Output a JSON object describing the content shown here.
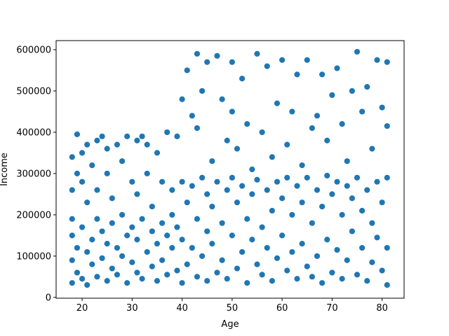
{
  "chart_data": {
    "type": "scatter",
    "xlabel": "Age",
    "ylabel": "Income",
    "color": "#1f77b4",
    "xlim": [
      14.8,
      84.4
    ],
    "ylim": [
      -2000,
      622000
    ],
    "xticks": [
      20,
      30,
      40,
      50,
      60,
      70,
      80
    ],
    "yticks": [
      0,
      100000,
      200000,
      300000,
      400000,
      500000,
      600000
    ],
    "x": [
      18,
      18,
      18,
      18,
      18,
      18,
      19,
      19,
      19,
      19,
      20,
      20,
      20,
      20,
      21,
      21,
      21,
      21,
      22,
      22,
      22,
      23,
      23,
      23,
      23,
      24,
      24,
      24,
      25,
      25,
      25,
      25,
      26,
      26,
      26,
      27,
      27,
      27,
      28,
      28,
      28,
      29,
      29,
      29,
      30,
      30,
      30,
      31,
      31,
      31,
      31,
      32,
      32,
      32,
      33,
      33,
      33,
      34,
      34,
      34,
      35,
      35,
      35,
      36,
      36,
      36,
      37,
      37,
      37,
      38,
      38,
      38,
      39,
      39,
      39,
      40,
      40,
      40,
      40,
      41,
      41,
      41,
      42,
      42,
      42,
      43,
      43,
      43,
      43,
      44,
      44,
      44,
      45,
      45,
      45,
      45,
      46,
      46,
      46,
      47,
      47,
      47,
      48,
      48,
      48,
      49,
      49,
      49,
      50,
      50,
      50,
      50,
      51,
      51,
      51,
      52,
      52,
      52,
      53,
      53,
      53,
      54,
      54,
      54,
      55,
      55,
      55,
      56,
      56,
      56,
      57,
      57,
      57,
      58,
      58,
      58,
      59,
      59,
      59,
      60,
      60,
      60,
      61,
      61,
      61,
      62,
      62,
      62,
      63,
      63,
      63,
      64,
      64,
      64,
      65,
      65,
      65,
      66,
      66,
      66,
      67,
      67,
      67,
      68,
      68,
      68,
      69,
      69,
      69,
      70,
      70,
      70,
      71,
      71,
      71,
      72,
      72,
      72,
      73,
      73,
      73,
      74,
      74,
      74,
      75,
      75,
      75,
      76,
      76,
      76,
      77,
      77,
      77,
      78,
      78,
      78,
      79,
      79,
      79,
      80,
      80,
      80,
      81,
      81,
      81,
      81,
      81
    ],
    "y": [
      35000,
      90000,
      150000,
      190000,
      260000,
      340000,
      60000,
      120000,
      395000,
      300000,
      45000,
      170000,
      280000,
      350000,
      30000,
      110000,
      230000,
      370000,
      80000,
      140000,
      320000,
      50000,
      190000,
      260000,
      380000,
      95000,
      160000,
      390000,
      40000,
      130000,
      300000,
      360000,
      70000,
      180000,
      240000,
      55000,
      120000,
      370000,
      100000,
      200000,
      330000,
      35000,
      150000,
      390000,
      85000,
      170000,
      280000,
      60000,
      140000,
      250000,
      380000,
      45000,
      190000,
      390000,
      110000,
      300000,
      370000,
      75000,
      160000,
      220000,
      40000,
      130000,
      350000,
      90000,
      180000,
      280000,
      55000,
      150000,
      400000,
      120000,
      200000,
      260000,
      65000,
      170000,
      390000,
      35000,
      140000,
      280000,
      480000,
      80000,
      230000,
      550000,
      120000,
      270000,
      440000,
      50000,
      190000,
      590000,
      410000,
      100000,
      290000,
      500000,
      40000,
      160000,
      250000,
      570000,
      130000,
      220000,
      330000,
      60000,
      280000,
      585000,
      90000,
      180000,
      480000,
      45000,
      260000,
      380000,
      150000,
      290000,
      570000,
      450000,
      70000,
      230000,
      360000,
      110000,
      270000,
      530000,
      35000,
      190000,
      420000,
      140000,
      250000,
      310000,
      80000,
      285000,
      590000,
      55000,
      170000,
      400000,
      120000,
      260000,
      560000,
      40000,
      210000,
      340000,
      95000,
      280000,
      470000,
      150000,
      240000,
      575000,
      65000,
      290000,
      370000,
      110000,
      200000,
      450000,
      45000,
      270000,
      540000,
      130000,
      230000,
      320000,
      75000,
      290000,
      575000,
      50000,
      180000,
      410000,
      100000,
      260000,
      440000,
      35000,
      220000,
      540000,
      140000,
      295000,
      380000,
      60000,
      250000,
      490000,
      115000,
      280000,
      555000,
      45000,
      200000,
      420000,
      90000,
      270000,
      330000,
      160000,
      240000,
      500000,
      55000,
      290000,
      595000,
      120000,
      210000,
      450000,
      40000,
      260000,
      510000,
      85000,
      180000,
      360000,
      145000,
      280000,
      575000,
      65000,
      230000,
      460000,
      30000,
      120000,
      290000,
      570000,
      415000
    ]
  }
}
